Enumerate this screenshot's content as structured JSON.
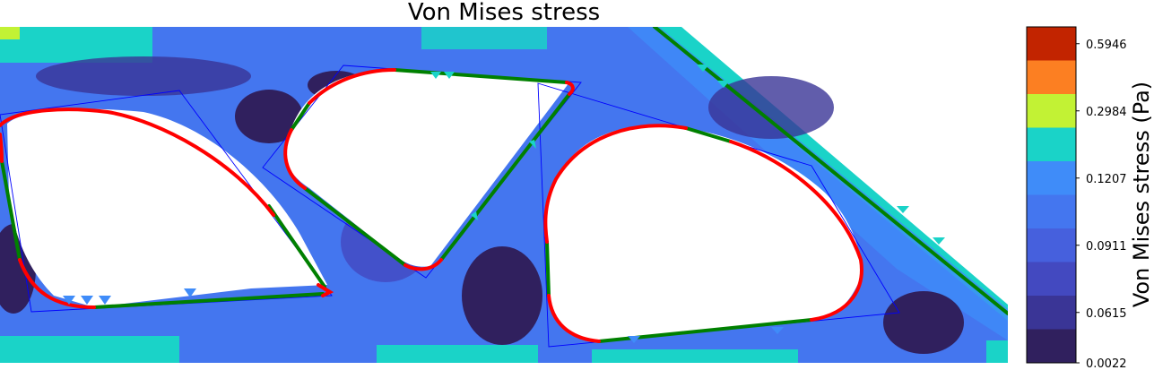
{
  "chart_data": {
    "type": "heatmap",
    "title": "Von Mises stress",
    "colorbar": {
      "label": "Von Mises stress (Pa)",
      "tick_labels": [
        "0.0022",
        "0.0615",
        "0.0911",
        "0.1207",
        "0.2984",
        "0.5946"
      ],
      "levels": [
        {
          "color": "#30205e"
        },
        {
          "color": "#3a3596"
        },
        {
          "color": "#4349c0"
        },
        {
          "color": "#4660dd"
        },
        {
          "color": "#4476ef"
        },
        {
          "color": "#3f8cf9"
        },
        {
          "color": "#1ad3c8"
        },
        {
          "color": "#c2f234"
        },
        {
          "color": "#fc7f22"
        },
        {
          "color": "#c22400"
        }
      ]
    },
    "overlay_lines": {
      "fillet_color": "#ff0000",
      "straight_color": "#008000",
      "bounding_color": "#0000ff"
    }
  }
}
